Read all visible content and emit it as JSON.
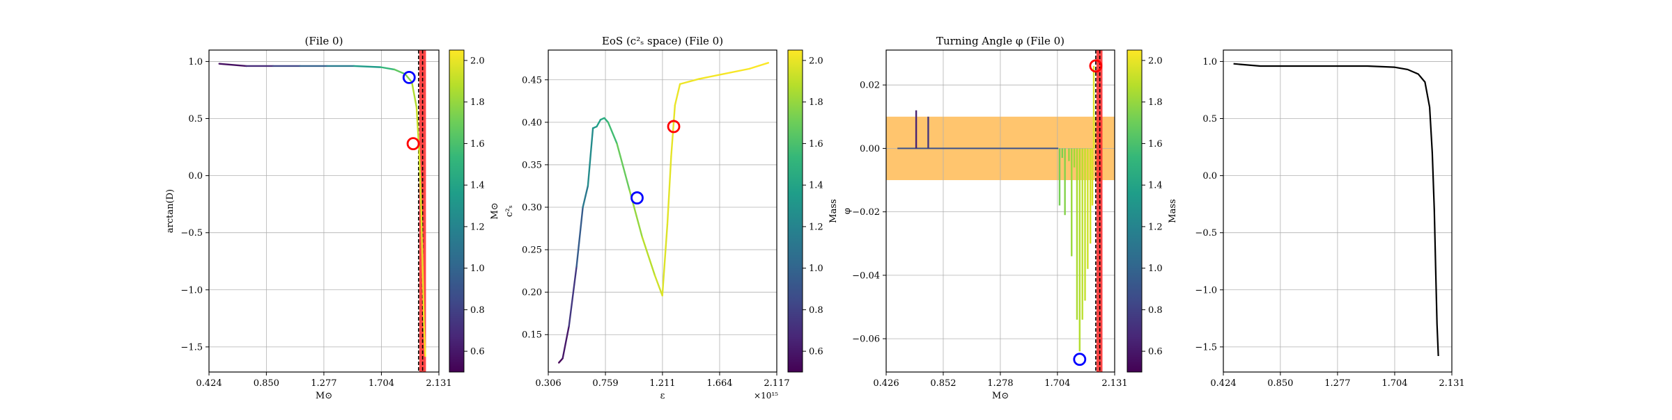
{
  "chart_data": [
    {
      "type": "line",
      "title": "(File 0)",
      "xlabel": "M⊙",
      "ylabel": "arctan(D)",
      "xlim": [
        0.424,
        2.131
      ],
      "ylim": [
        -1.72,
        1.1
      ],
      "xticks": [
        0.424,
        0.85,
        1.277,
        1.704,
        2.131
      ],
      "xtick_labels": [
        "0.424",
        "0.850",
        "1.277",
        "1.704",
        "2.131"
      ],
      "yticks": [
        1.0,
        0.5,
        0.0,
        -0.5,
        -1.0,
        -1.5
      ],
      "ytick_labels": [
        "1.0",
        "0.5",
        "0.0",
        "−0.5",
        "−1.0",
        "−1.5"
      ],
      "grid": true,
      "colorbar": {
        "label": "M⊙",
        "range": [
          0.5,
          2.05
        ],
        "ticks": [
          0.6,
          0.8,
          1.0,
          1.2,
          1.4,
          1.6,
          1.8,
          2.0
        ],
        "tick_labels": [
          "0.6",
          "0.8",
          "1.0",
          "1.2",
          "1.4",
          "1.6",
          "1.8",
          "2.0"
        ]
      },
      "series": [
        {
          "x": [
            0.5,
            0.7,
            0.9,
            1.1,
            1.3,
            1.5,
            1.7,
            1.8,
            1.88,
            1.93,
            1.965,
            1.985,
            2.0,
            2.01,
            2.02,
            2.03
          ],
          "y": [
            0.98,
            0.96,
            0.96,
            0.96,
            0.96,
            0.96,
            0.95,
            0.93,
            0.89,
            0.82,
            0.6,
            0.2,
            -0.3,
            -0.8,
            -1.3,
            -1.58
          ],
          "c": [
            0.5,
            0.62,
            0.75,
            0.9,
            1.05,
            1.25,
            1.45,
            1.6,
            1.72,
            1.82,
            1.9,
            1.95,
            1.98,
            2.0,
            2.02,
            2.04
          ]
        }
      ],
      "markers": [
        {
          "x": 1.91,
          "y": 0.86,
          "color": "#0000ff"
        },
        {
          "x": 1.94,
          "y": 0.28,
          "color": "#ff0000"
        }
      ],
      "band": {
        "x0": 1.985,
        "x1": 2.035,
        "color": "#ff3333"
      },
      "vlines": [
        1.98,
        2.01
      ]
    },
    {
      "type": "line",
      "title": "EoS (c²ₛ space) (File 0)",
      "xlabel": "ε",
      "ylabel": "c²ₛ",
      "offset_label": "×10¹⁵",
      "xlim": [
        0.306,
        2.117
      ],
      "ylim": [
        0.106,
        0.485
      ],
      "xticks": [
        0.306,
        0.759,
        1.211,
        1.664,
        2.117
      ],
      "xtick_labels": [
        "0.306",
        "0.759",
        "1.211",
        "1.664",
        "2.117"
      ],
      "yticks": [
        0.15,
        0.2,
        0.25,
        0.3,
        0.35,
        0.4,
        0.45
      ],
      "ytick_labels": [
        "0.15",
        "0.20",
        "0.25",
        "0.30",
        "0.35",
        "0.40",
        "0.45"
      ],
      "grid": true,
      "colorbar": {
        "label": "Mass",
        "range": [
          0.5,
          2.05
        ],
        "ticks": [
          0.6,
          0.8,
          1.0,
          1.2,
          1.4,
          1.6,
          1.8,
          2.0
        ],
        "tick_labels": [
          "0.6",
          "0.8",
          "1.0",
          "1.2",
          "1.4",
          "1.6",
          "1.8",
          "2.0"
        ]
      },
      "series": [
        {
          "x": [
            0.39,
            0.42,
            0.47,
            0.53,
            0.58,
            0.62,
            0.66,
            0.69,
            0.72,
            0.75,
            0.78,
            0.85,
            0.95,
            1.05,
            1.15,
            1.21,
            1.25,
            1.28,
            1.31,
            1.35,
            1.5,
            1.7,
            1.9,
            2.05
          ],
          "y": [
            0.117,
            0.122,
            0.16,
            0.23,
            0.3,
            0.325,
            0.393,
            0.395,
            0.403,
            0.405,
            0.4,
            0.375,
            0.32,
            0.265,
            0.22,
            0.196,
            0.28,
            0.36,
            0.42,
            0.445,
            0.451,
            0.457,
            0.463,
            0.47
          ],
          "c": [
            0.5,
            0.55,
            0.65,
            0.85,
            1.05,
            1.2,
            1.3,
            1.35,
            1.4,
            1.45,
            1.52,
            1.62,
            1.75,
            1.85,
            1.92,
            1.96,
            1.98,
            1.99,
            2.0,
            2.01,
            2.02,
            2.03,
            2.04,
            2.05
          ]
        }
      ],
      "markers": [
        {
          "x": 1.01,
          "y": 0.311,
          "color": "#0000ff"
        },
        {
          "x": 1.3,
          "y": 0.395,
          "color": "#ff0000"
        }
      ]
    },
    {
      "type": "line",
      "title": "Turning Angle φ (File 0)",
      "xlabel": "M⊙",
      "ylabel": "φ",
      "xlim": [
        0.426,
        2.131
      ],
      "ylim": [
        -0.0705,
        0.031
      ],
      "xticks": [
        0.426,
        0.852,
        1.278,
        1.704,
        2.131
      ],
      "xtick_labels": [
        "0.426",
        "0.852",
        "1.278",
        "1.704",
        "2.131"
      ],
      "yticks": [
        0.02,
        0.0,
        -0.02,
        -0.04,
        -0.06
      ],
      "ytick_labels": [
        "0.02",
        "0.00",
        "−0.02",
        "−0.04",
        "−0.06"
      ],
      "grid": true,
      "colorbar": {
        "label": "Mass",
        "range": [
          0.5,
          2.05
        ],
        "ticks": [
          0.6,
          0.8,
          1.0,
          1.2,
          1.4,
          1.6,
          1.8,
          2.0
        ],
        "tick_labels": [
          "0.6",
          "0.8",
          "1.0",
          "1.2",
          "1.4",
          "1.6",
          "1.8",
          "2.0"
        ]
      },
      "hband": {
        "y0": -0.01,
        "y1": 0.01,
        "color": "#ffc266"
      },
      "baseline": {
        "x": [
          0.51,
          1.71
        ],
        "y": 0.0
      },
      "spikes": [
        {
          "x": 0.65,
          "y": 0.012,
          "c": 0.65
        },
        {
          "x": 0.74,
          "y": 0.01,
          "c": 0.74
        },
        {
          "x": 1.72,
          "y": -0.018,
          "c": 1.72
        },
        {
          "x": 1.74,
          "y": -0.003,
          "c": 1.74
        },
        {
          "x": 1.76,
          "y": -0.021,
          "c": 1.76
        },
        {
          "x": 1.79,
          "y": -0.004,
          "c": 1.79
        },
        {
          "x": 1.81,
          "y": -0.034,
          "c": 1.81
        },
        {
          "x": 1.83,
          "y": -0.006,
          "c": 1.83
        },
        {
          "x": 1.85,
          "y": -0.054,
          "c": 1.85
        },
        {
          "x": 1.87,
          "y": -0.064,
          "c": 1.87
        },
        {
          "x": 1.89,
          "y": -0.054,
          "c": 1.89
        },
        {
          "x": 1.91,
          "y": -0.048,
          "c": 1.91
        },
        {
          "x": 1.93,
          "y": -0.038,
          "c": 1.93
        },
        {
          "x": 1.95,
          "y": -0.03,
          "c": 1.95
        },
        {
          "x": 1.965,
          "y": -0.018,
          "c": 1.965
        },
        {
          "x": 1.975,
          "y": 0.026,
          "c": 1.975
        }
      ],
      "markers": [
        {
          "x": 1.87,
          "y": -0.0665,
          "color": "#0000ff"
        },
        {
          "x": 1.99,
          "y": 0.026,
          "color": "#ff0000"
        }
      ],
      "band": {
        "x0": 1.995,
        "x1": 2.04,
        "color": "#ff3333"
      },
      "vlines": [
        1.99,
        2.02
      ]
    },
    {
      "type": "line",
      "title": "",
      "xlabel": "",
      "ylabel": "",
      "xlim": [
        0.424,
        2.131
      ],
      "ylim": [
        -1.72,
        1.1
      ],
      "xticks": [
        0.424,
        0.85,
        1.277,
        1.704,
        2.131
      ],
      "xtick_labels": [
        "0.424",
        "0.850",
        "1.277",
        "1.704",
        "2.131"
      ],
      "yticks": [
        1.0,
        0.5,
        0.0,
        -0.5,
        -1.0,
        -1.5
      ],
      "ytick_labels": [
        "1.0",
        "0.5",
        "0.0",
        "−0.5",
        "−1.0",
        "−1.5"
      ],
      "grid": true,
      "series": [
        {
          "x": [
            0.5,
            0.7,
            0.9,
            1.1,
            1.3,
            1.5,
            1.7,
            1.8,
            1.88,
            1.93,
            1.965,
            1.985,
            2.0,
            2.01,
            2.02,
            2.03
          ],
          "y": [
            0.98,
            0.96,
            0.96,
            0.96,
            0.96,
            0.96,
            0.95,
            0.93,
            0.89,
            0.82,
            0.6,
            0.2,
            -0.3,
            -0.8,
            -1.3,
            -1.58
          ],
          "color": "#000000"
        }
      ]
    }
  ]
}
